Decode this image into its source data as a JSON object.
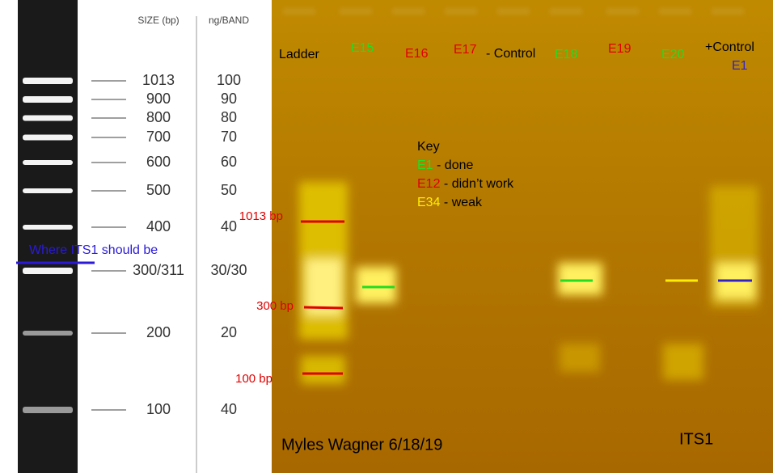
{
  "ladder": {
    "size_header": "SIZE (bp)",
    "ng_header": "ng/BAND",
    "rows": [
      [
        "1013",
        "100"
      ],
      [
        "900",
        "90"
      ],
      [
        "800",
        "80"
      ],
      [
        "700",
        "70"
      ],
      [
        "600",
        "60"
      ],
      [
        "500",
        "50"
      ],
      [
        "400",
        "40"
      ],
      [
        "300/311",
        "30/30"
      ],
      [
        "200",
        "20"
      ],
      [
        "100",
        "40"
      ]
    ],
    "note": "Where ITS1 should be"
  },
  "gel": {
    "lanes": {
      "ladder": "Ladder",
      "e15": "E15",
      "e16": "E16",
      "e17": "E17",
      "neg_control": "- Control",
      "e18": "E18",
      "e19": "E19",
      "e20": "E20",
      "pos_control": "+Control",
      "e1": "E1"
    },
    "key": {
      "title": "Key",
      "done_id": "E1",
      "done": "- done",
      "fail_id": "E12",
      "fail": "- didn’t work",
      "weak_id": "E34",
      "weak": "- weak"
    },
    "markers": [
      "1013 bp",
      "300 bp",
      "100 bp"
    ],
    "author": "Myles Wagner 6/18/19",
    "target": "ITS1"
  }
}
